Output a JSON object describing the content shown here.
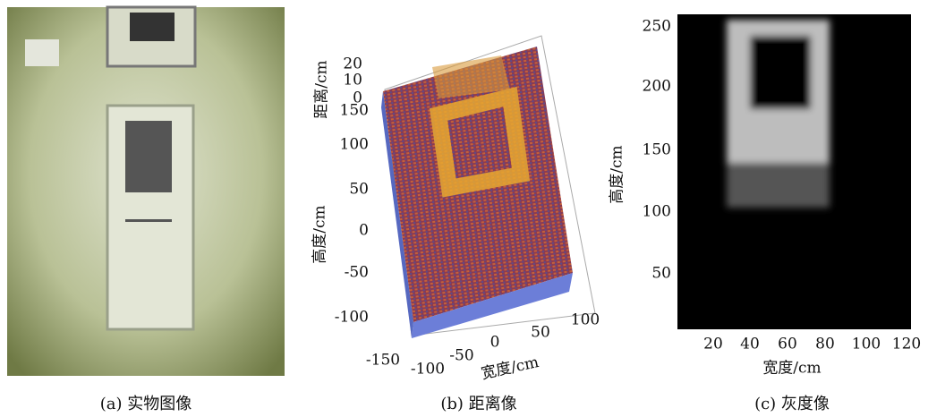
{
  "panels": [
    {
      "caption": "(a) 实物图像"
    },
    {
      "caption": "(b) 距离像",
      "z_label": "距离/cm",
      "z_ticks": [
        20,
        10,
        0
      ],
      "y_label": "高度/cm",
      "y_ticks": [
        150,
        100,
        50,
        0,
        -50,
        -100
      ],
      "x_label": "宽度/cm",
      "x_ticks": [
        -150,
        -100,
        -50,
        0,
        50,
        100
      ]
    },
    {
      "caption": "(c) 灰度像",
      "y_label": "高度/cm",
      "y_ticks": [
        250,
        200,
        150,
        100,
        50
      ],
      "x_label": "宽度/cm",
      "x_ticks": [
        20,
        40,
        60,
        80,
        100,
        120
      ]
    }
  ]
}
